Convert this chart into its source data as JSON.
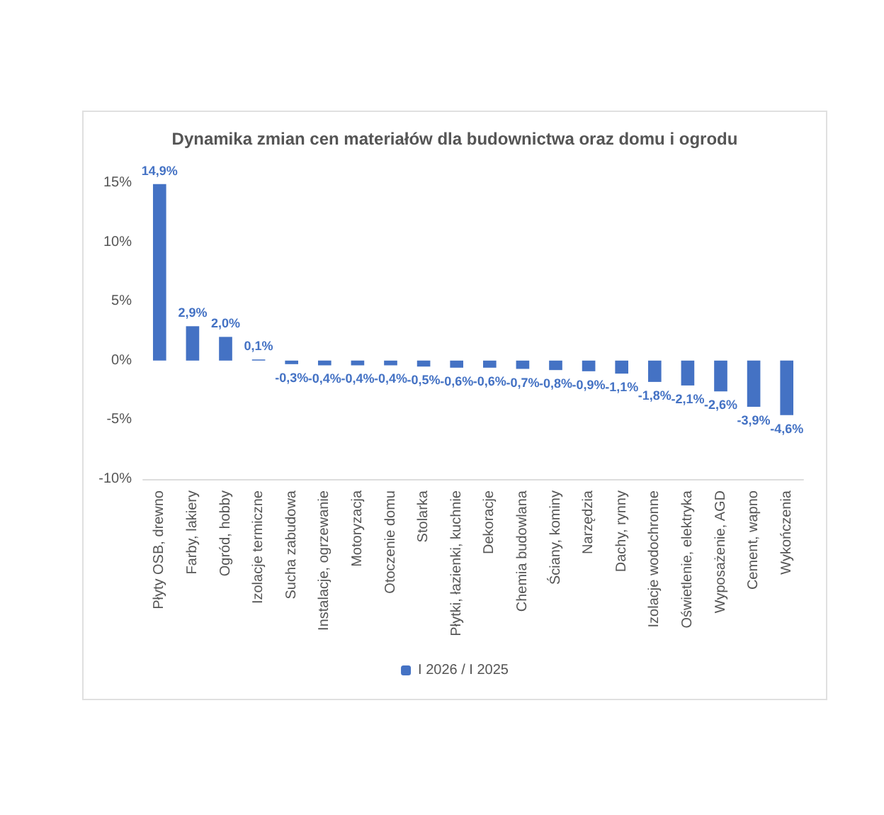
{
  "chart_data": {
    "type": "bar",
    "title": "Dynamika zmian cen materiałów dla budownictwa oraz domu i ogrodu",
    "categories": [
      "Płyty OSB, drewno",
      "Farby, lakiery",
      "Ogród, hobby",
      "Izolacje termiczne",
      "Sucha zabudowa",
      "Instalacje, ogrzewanie",
      "Motoryzacja",
      "Otoczenie domu",
      "Stolarka",
      "Płytki, łazienki, kuchnie",
      "Dekoracje",
      "Chemia budowlana",
      "Ściany, kominy",
      "Narzędzia",
      "Dachy, rynny",
      "Izolacje wodochronne",
      "Oświetlenie, elektryka",
      "Wyposażenie, AGD",
      "Cement, wapno",
      "Wykończenia"
    ],
    "series": [
      {
        "name": "I 2026 / I 2025",
        "color": "#4472c4",
        "values": [
          14.9,
          2.9,
          2.0,
          0.1,
          -0.3,
          -0.4,
          -0.4,
          -0.4,
          -0.5,
          -0.6,
          -0.6,
          -0.7,
          -0.8,
          -0.9,
          -1.1,
          -1.8,
          -2.1,
          -2.6,
          -3.9,
          -4.6
        ],
        "value_labels": [
          "14,9%",
          "2,9%",
          "2,0%",
          "0,1%",
          "-0,3%",
          "-0,4%",
          "-0,4%",
          "-0,4%",
          "-0,5%",
          "-0,6%",
          "-0,6%",
          "-0,7%",
          "-0,8%",
          "-0,9%",
          "-1,1%",
          "-1,8%",
          "-2,1%",
          "-2,6%",
          "-3,9%",
          "-4,6%"
        ]
      }
    ],
    "ylim": [
      -10,
      15
    ],
    "yticks": [
      {
        "value": -10,
        "label": "-10%"
      },
      {
        "value": -5,
        "label": "-5%"
      },
      {
        "value": 0,
        "label": "0%"
      },
      {
        "value": 5,
        "label": "5%"
      },
      {
        "value": 10,
        "label": "10%"
      },
      {
        "value": 15,
        "label": "15%"
      }
    ],
    "grid": false,
    "legend": "bottom"
  }
}
